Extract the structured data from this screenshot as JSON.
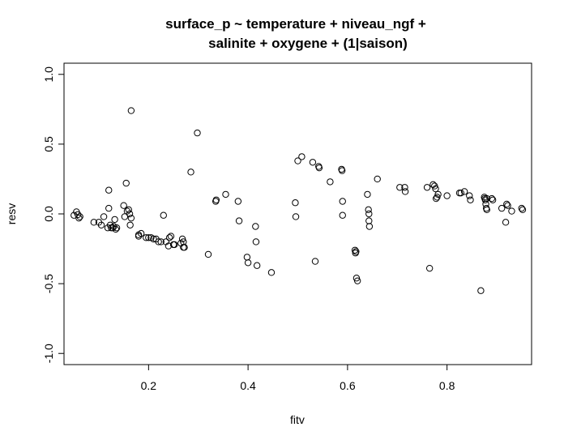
{
  "chart_data": {
    "type": "scatter",
    "title_line1": "surface_p ~ temperature + niveau_ngf +",
    "title_line2": "salinite + oxygene + (1|saison)",
    "xlabel": "fitv",
    "ylabel": "resv",
    "xlim": [
      0.03,
      0.97
    ],
    "ylim": [
      -1.08,
      1.08
    ],
    "x_ticks": [
      0.2,
      0.4,
      0.6,
      0.8
    ],
    "x_tick_labels": [
      "0.2",
      "0.4",
      "0.6",
      "0.8"
    ],
    "y_ticks": [
      -1.0,
      -0.5,
      0.0,
      0.5,
      1.0
    ],
    "y_tick_labels": [
      "-1.0",
      "-0.5",
      "0.0",
      "0.5",
      "1.0"
    ],
    "grid": false,
    "legend": "none",
    "points": [
      [
        0.05,
        -0.01
      ],
      [
        0.055,
        0.015
      ],
      [
        0.058,
        -0.005
      ],
      [
        0.06,
        -0.03
      ],
      [
        0.062,
        -0.02
      ],
      [
        0.09,
        -0.06
      ],
      [
        0.1,
        -0.06
      ],
      [
        0.105,
        -0.08
      ],
      [
        0.11,
        -0.02
      ],
      [
        0.118,
        -0.1
      ],
      [
        0.12,
        0.17
      ],
      [
        0.12,
        0.04
      ],
      [
        0.123,
        -0.08
      ],
      [
        0.125,
        -0.1
      ],
      [
        0.128,
        -0.1
      ],
      [
        0.13,
        -0.09
      ],
      [
        0.132,
        -0.04
      ],
      [
        0.134,
        -0.11
      ],
      [
        0.136,
        -0.1
      ],
      [
        0.15,
        0.06
      ],
      [
        0.152,
        -0.02
      ],
      [
        0.155,
        0.22
      ],
      [
        0.157,
        0.02
      ],
      [
        0.16,
        0.03
      ],
      [
        0.162,
        0.0
      ],
      [
        0.163,
        -0.08
      ],
      [
        0.165,
        0.74
      ],
      [
        0.165,
        -0.03
      ],
      [
        0.18,
        -0.15
      ],
      [
        0.18,
        -0.16
      ],
      [
        0.185,
        -0.14
      ],
      [
        0.195,
        -0.17
      ],
      [
        0.2,
        -0.17
      ],
      [
        0.205,
        -0.17
      ],
      [
        0.21,
        -0.18
      ],
      [
        0.215,
        -0.18
      ],
      [
        0.22,
        -0.2
      ],
      [
        0.225,
        -0.2
      ],
      [
        0.23,
        -0.01
      ],
      [
        0.235,
        -0.2
      ],
      [
        0.24,
        -0.23
      ],
      [
        0.242,
        -0.17
      ],
      [
        0.245,
        -0.16
      ],
      [
        0.25,
        -0.22
      ],
      [
        0.252,
        -0.22
      ],
      [
        0.265,
        -0.21
      ],
      [
        0.268,
        -0.18
      ],
      [
        0.27,
        -0.24
      ],
      [
        0.272,
        -0.24
      ],
      [
        0.27,
        -0.2
      ],
      [
        0.285,
        0.3
      ],
      [
        0.298,
        0.58
      ],
      [
        0.32,
        -0.29
      ],
      [
        0.335,
        0.09
      ],
      [
        0.336,
        0.1
      ],
      [
        0.355,
        0.14
      ],
      [
        0.38,
        0.09
      ],
      [
        0.382,
        -0.05
      ],
      [
        0.398,
        -0.31
      ],
      [
        0.4,
        -0.35
      ],
      [
        0.415,
        -0.09
      ],
      [
        0.416,
        -0.2
      ],
      [
        0.418,
        -0.37
      ],
      [
        0.447,
        -0.42
      ],
      [
        0.495,
        0.08
      ],
      [
        0.496,
        -0.02
      ],
      [
        0.5,
        0.38
      ],
      [
        0.508,
        0.41
      ],
      [
        0.53,
        0.37
      ],
      [
        0.535,
        -0.34
      ],
      [
        0.542,
        0.34
      ],
      [
        0.543,
        0.33
      ],
      [
        0.565,
        0.23
      ],
      [
        0.588,
        0.32
      ],
      [
        0.589,
        0.31
      ],
      [
        0.59,
        0.09
      ],
      [
        0.59,
        -0.01
      ],
      [
        0.615,
        -0.26
      ],
      [
        0.616,
        -0.28
      ],
      [
        0.617,
        -0.27
      ],
      [
        0.618,
        -0.46
      ],
      [
        0.62,
        -0.48
      ],
      [
        0.64,
        0.14
      ],
      [
        0.642,
        0.03
      ],
      [
        0.643,
        0.0
      ],
      [
        0.643,
        -0.05
      ],
      [
        0.644,
        -0.09
      ],
      [
        0.66,
        0.25
      ],
      [
        0.705,
        0.19
      ],
      [
        0.715,
        0.19
      ],
      [
        0.716,
        0.16
      ],
      [
        0.76,
        0.19
      ],
      [
        0.765,
        -0.39
      ],
      [
        0.772,
        0.21
      ],
      [
        0.775,
        0.2
      ],
      [
        0.777,
        0.18
      ],
      [
        0.778,
        0.11
      ],
      [
        0.78,
        0.12
      ],
      [
        0.782,
        0.14
      ],
      [
        0.8,
        0.13
      ],
      [
        0.825,
        0.15
      ],
      [
        0.828,
        0.15
      ],
      [
        0.835,
        0.16
      ],
      [
        0.845,
        0.13
      ],
      [
        0.847,
        0.1
      ],
      [
        0.868,
        -0.55
      ],
      [
        0.875,
        0.12
      ],
      [
        0.876,
        0.11
      ],
      [
        0.877,
        0.1
      ],
      [
        0.878,
        0.07
      ],
      [
        0.879,
        0.04
      ],
      [
        0.88,
        0.03
      ],
      [
        0.88,
        0.11
      ],
      [
        0.89,
        0.11
      ],
      [
        0.892,
        0.1
      ],
      [
        0.91,
        0.04
      ],
      [
        0.918,
        -0.06
      ],
      [
        0.92,
        0.07
      ],
      [
        0.922,
        0.06
      ],
      [
        0.93,
        0.02
      ],
      [
        0.95,
        0.04
      ],
      [
        0.952,
        0.03
      ]
    ]
  }
}
